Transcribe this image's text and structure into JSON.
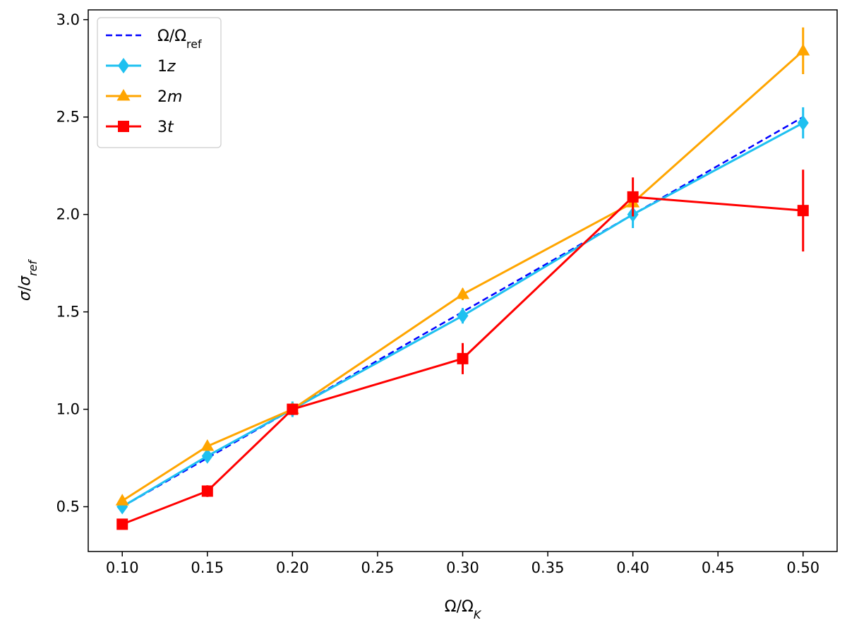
{
  "chart_data": {
    "type": "line",
    "xlabel": "Ω/Ω_K",
    "ylabel": "σ/σ_ref",
    "xlim": [
      0.08,
      0.52
    ],
    "ylim": [
      0.27,
      3.05
    ],
    "xticks": [
      0.1,
      0.15,
      0.2,
      0.25,
      0.3,
      0.35,
      0.4,
      0.45,
      0.5
    ],
    "xtick_labels": [
      "0.10",
      "0.15",
      "0.20",
      "0.25",
      "0.30",
      "0.35",
      "0.40",
      "0.45",
      "0.50"
    ],
    "yticks": [
      0.5,
      1.0,
      1.5,
      2.0,
      2.5,
      3.0
    ],
    "ytick_labels": [
      "0.5",
      "1.0",
      "1.5",
      "2.0",
      "2.5",
      "3.0"
    ],
    "grid": false,
    "legend_position": "top-left",
    "series": [
      {
        "name": "Ω/Ω_ref",
        "color": "#0000ff",
        "style": "dashed",
        "marker": "none",
        "x": [
          0.1,
          0.15,
          0.2,
          0.3,
          0.4,
          0.5
        ],
        "y": [
          0.5,
          0.75,
          1.0,
          1.5,
          2.0,
          2.5
        ],
        "yerr": [
          0,
          0,
          0,
          0,
          0,
          0
        ]
      },
      {
        "name": "1z",
        "color": "#1ec0f0",
        "style": "solid",
        "marker": "diamond",
        "x": [
          0.1,
          0.15,
          0.2,
          0.3,
          0.4,
          0.5
        ],
        "y": [
          0.5,
          0.76,
          1.0,
          1.48,
          2.0,
          2.47
        ],
        "yerr": [
          0.02,
          0.02,
          0.04,
          0.04,
          0.07,
          0.08
        ]
      },
      {
        "name": "2m",
        "color": "#ffa500",
        "style": "solid",
        "marker": "triangle",
        "x": [
          0.1,
          0.15,
          0.2,
          0.3,
          0.4,
          0.5
        ],
        "y": [
          0.53,
          0.81,
          1.0,
          1.59,
          2.06,
          2.84
        ],
        "yerr": [
          0.01,
          0.01,
          0.02,
          0.03,
          0.03,
          0.12
        ]
      },
      {
        "name": "3t",
        "color": "#ff0000",
        "style": "solid",
        "marker": "square",
        "x": [
          0.1,
          0.15,
          0.2,
          0.3,
          0.4,
          0.5
        ],
        "y": [
          0.41,
          0.58,
          1.0,
          1.26,
          2.09,
          2.02
        ],
        "yerr": [
          0.01,
          0.03,
          0.02,
          0.08,
          0.1,
          0.21
        ]
      }
    ]
  }
}
